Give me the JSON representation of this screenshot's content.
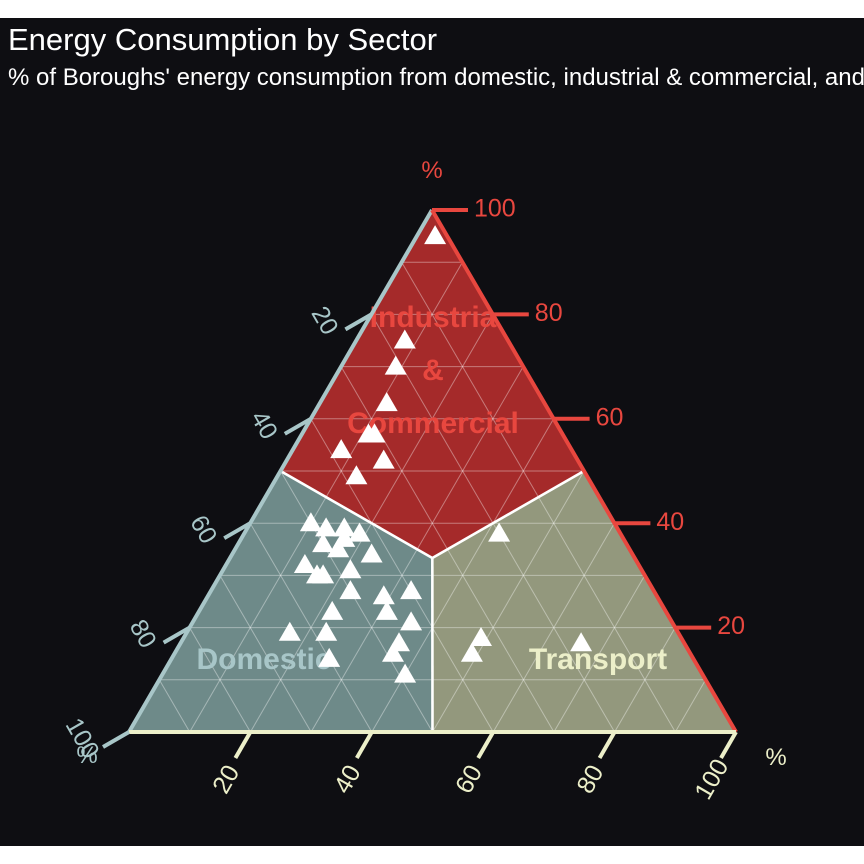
{
  "chart_data": {
    "type": "scatter",
    "subtype": "ternary",
    "title": "Energy Consumption by Sector",
    "subtitle": "% of Boroughs' energy consumption from domestic, industrial & commercial, and transport",
    "axes": {
      "left": {
        "label": "%",
        "ticks": [
          "20",
          "40",
          "60",
          "80",
          "100"
        ],
        "color": "#a8c6c8"
      },
      "right": {
        "label": "%",
        "ticks": [
          "20",
          "40",
          "60",
          "80",
          "100"
        ],
        "color": "#e8473f"
      },
      "bottom": {
        "label": "%",
        "ticks": [
          "20",
          "40",
          "60",
          "80",
          "100"
        ],
        "color": "#ecefc9"
      }
    },
    "grid": true,
    "regions": [
      {
        "label": "Industrial & Commercial",
        "lines": [
          "Industria",
          "&",
          "Commercial"
        ],
        "color": "#a52a2a",
        "label_color": "#e8473f"
      },
      {
        "label": "Domestic",
        "lines": [
          "Domestic"
        ],
        "color": "#6e8a89",
        "label_color": "#a8c6c8"
      },
      {
        "label": "Transport",
        "lines": [
          "Transport"
        ],
        "color": "#93987d",
        "label_color": "#ecefc9"
      }
    ],
    "marker": {
      "shape": "triangle",
      "color": "#ffffff"
    },
    "points": [
      {
        "domestic": 2,
        "industrial_commercial": 95,
        "transport": 3
      },
      {
        "domestic": 17,
        "industrial_commercial": 75,
        "transport": 8
      },
      {
        "domestic": 21,
        "industrial_commercial": 70,
        "transport": 9
      },
      {
        "domestic": 26,
        "industrial_commercial": 63,
        "transport": 11
      },
      {
        "domestic": 31,
        "industrial_commercial": 57,
        "transport": 12
      },
      {
        "domestic": 32,
        "industrial_commercial": 57,
        "transport": 11
      },
      {
        "domestic": 38,
        "industrial_commercial": 54,
        "transport": 8
      },
      {
        "domestic": 32,
        "industrial_commercial": 52,
        "transport": 16
      },
      {
        "domestic": 38,
        "industrial_commercial": 49,
        "transport": 13
      },
      {
        "domestic": 20,
        "industrial_commercial": 38,
        "transport": 42
      },
      {
        "domestic": 50,
        "industrial_commercial": 40,
        "transport": 10
      },
      {
        "domestic": 45,
        "industrial_commercial": 39,
        "transport": 16
      },
      {
        "domestic": 48,
        "industrial_commercial": 39,
        "transport": 13
      },
      {
        "domestic": 46,
        "industrial_commercial": 37,
        "transport": 17
      },
      {
        "domestic": 43,
        "industrial_commercial": 38,
        "transport": 19
      },
      {
        "domestic": 50,
        "industrial_commercial": 36,
        "transport": 14
      },
      {
        "domestic": 48,
        "industrial_commercial": 35,
        "transport": 17
      },
      {
        "domestic": 43,
        "industrial_commercial": 34,
        "transport": 23
      },
      {
        "domestic": 55,
        "industrial_commercial": 32,
        "transport": 13
      },
      {
        "domestic": 54,
        "industrial_commercial": 30,
        "transport": 16
      },
      {
        "domestic": 48,
        "industrial_commercial": 31,
        "transport": 21
      },
      {
        "domestic": 53,
        "industrial_commercial": 30,
        "transport": 17
      },
      {
        "domestic": 40,
        "industrial_commercial": 27,
        "transport": 33
      },
      {
        "domestic": 50,
        "industrial_commercial": 27,
        "transport": 23
      },
      {
        "domestic": 45,
        "industrial_commercial": 26,
        "transport": 29
      },
      {
        "domestic": 55,
        "industrial_commercial": 23,
        "transport": 22
      },
      {
        "domestic": 46,
        "industrial_commercial": 23,
        "transport": 31
      },
      {
        "domestic": 43,
        "industrial_commercial": 21,
        "transport": 36
      },
      {
        "domestic": 64,
        "industrial_commercial": 19,
        "transport": 17
      },
      {
        "domestic": 58,
        "industrial_commercial": 19,
        "transport": 23
      },
      {
        "domestic": 47,
        "industrial_commercial": 17,
        "transport": 36
      },
      {
        "domestic": 33,
        "industrial_commercial": 18,
        "transport": 49
      },
      {
        "domestic": 49,
        "industrial_commercial": 15,
        "transport": 36
      },
      {
        "domestic": 36,
        "industrial_commercial": 15,
        "transport": 49
      },
      {
        "domestic": 60,
        "industrial_commercial": 14,
        "transport": 26
      },
      {
        "domestic": 49,
        "industrial_commercial": 11,
        "transport": 40
      },
      {
        "domestic": 17,
        "industrial_commercial": 17,
        "transport": 66
      }
    ]
  }
}
